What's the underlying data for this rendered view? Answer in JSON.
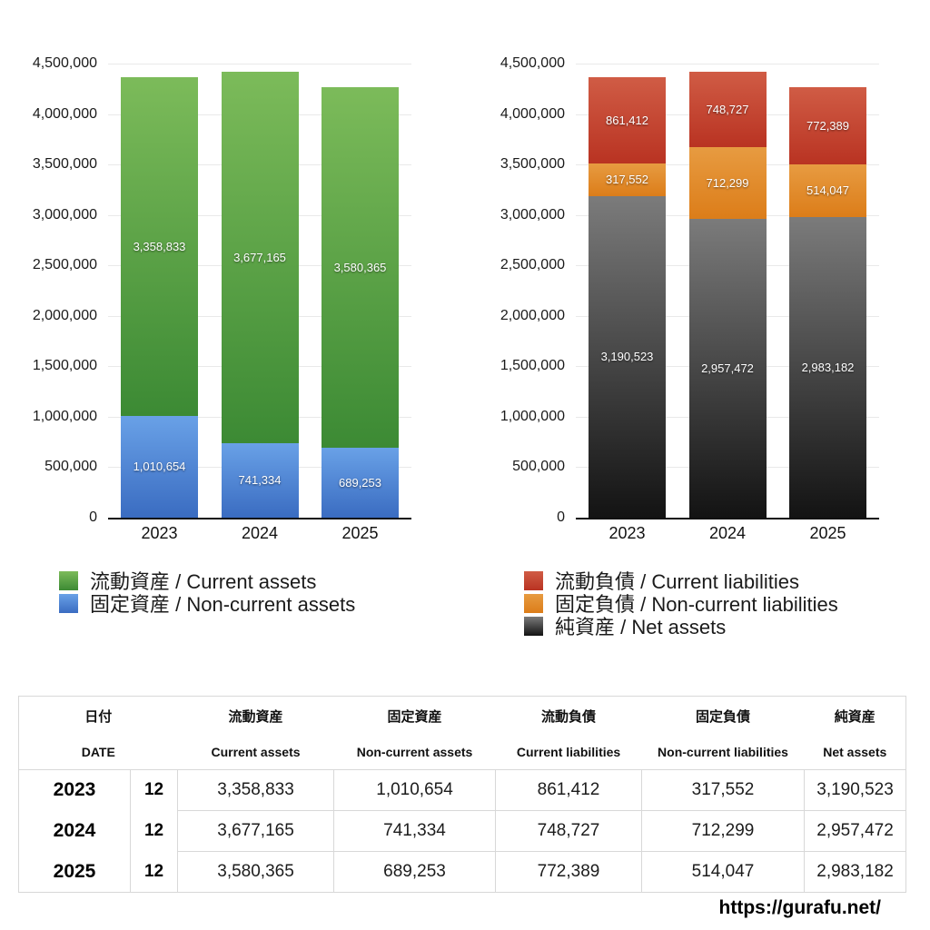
{
  "chart_data": [
    {
      "type": "bar",
      "stacked": true,
      "title": "",
      "categories": [
        "2023",
        "2024",
        "2025"
      ],
      "series": [
        {
          "name": "流動資産 / Current assets",
          "values": [
            3358833,
            3677165,
            3580365
          ],
          "color_top": "#7cbb5a",
          "color_bottom": "#3c8a34"
        },
        {
          "name": "固定資産 / Non-current assets",
          "values": [
            1010654,
            741334,
            689253
          ],
          "color_top": "#69a1e7",
          "color_bottom": "#3a6cc1"
        }
      ],
      "ylim": [
        0,
        4500000
      ],
      "ytick_step": 500000,
      "yticks": [
        "0",
        "500,000",
        "1,000,000",
        "1,500,000",
        "2,000,000",
        "2,500,000",
        "3,000,000",
        "3,500,000",
        "4,000,000",
        "4,500,000"
      ],
      "grid": true,
      "legend_position": "bottom-left"
    },
    {
      "type": "bar",
      "stacked": true,
      "title": "",
      "categories": [
        "2023",
        "2024",
        "2025"
      ],
      "series": [
        {
          "name": "流動負債 / Current liabilities",
          "values": [
            861412,
            748727,
            772389
          ],
          "color_top": "#d05c45",
          "color_bottom": "#b93322"
        },
        {
          "name": "固定負債 / Non-current liabilities",
          "values": [
            317552,
            712299,
            514047
          ],
          "color_top": "#e79b41",
          "color_bottom": "#dc7d19"
        },
        {
          "name": "純資産 / Net assets",
          "values": [
            3190523,
            2957472,
            2983182
          ],
          "color_top": "#7b7b7b",
          "color_bottom": "#131313"
        }
      ],
      "ylim": [
        0,
        4500000
      ],
      "ytick_step": 500000,
      "yticks": [
        "0",
        "500,000",
        "1,000,000",
        "1,500,000",
        "2,000,000",
        "2,500,000",
        "3,000,000",
        "3,500,000",
        "4,000,000",
        "4,500,000"
      ],
      "grid": true,
      "legend_position": "bottom-left"
    }
  ],
  "table": {
    "header_jp": [
      "日付",
      "流動資産",
      "固定資産",
      "流動負債",
      "固定負債",
      "純資産"
    ],
    "header_en": [
      "DATE",
      "Current assets",
      "Non-current assets",
      "Current liabilities",
      "Non-current liabilities",
      "Net assets"
    ],
    "rows": [
      {
        "year": "2023",
        "month": "12",
        "values": [
          "3,358,833",
          "1,010,654",
          "861,412",
          "317,552",
          "3,190,523"
        ]
      },
      {
        "year": "2024",
        "month": "12",
        "values": [
          "3,677,165",
          "741,334",
          "748,727",
          "712,299",
          "2,957,472"
        ]
      },
      {
        "year": "2025",
        "month": "12",
        "values": [
          "3,580,365",
          "689,253",
          "772,389",
          "514,047",
          "2,983,182"
        ]
      }
    ]
  },
  "footer": {
    "url": "https://gurafu.net/"
  }
}
